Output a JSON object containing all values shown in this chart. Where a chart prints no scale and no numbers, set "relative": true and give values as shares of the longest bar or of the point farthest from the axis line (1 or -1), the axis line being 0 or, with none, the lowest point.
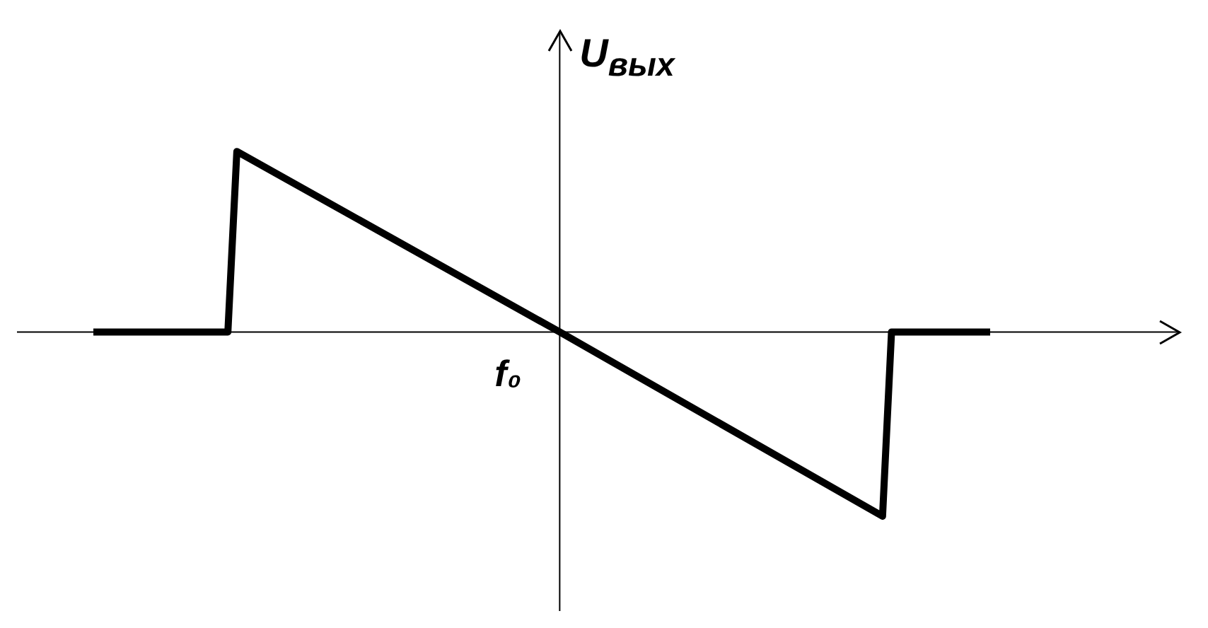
{
  "chart_data": {
    "type": "line",
    "relative": true,
    "ylabel": "U$_{вых}$",
    "categories": [
      null,
      null,
      null,
      null,
      null,
      null,
      null,
      null,
      null,
      null,
      null,
      null,
      null,
      null,
      null,
      null,
      null,
      null,
      null,
      null,
      null,
      null,
      null,
      null,
      null,
      null,
      null,
      null,
      null,
      null,
      null,
      null,
      null,
      null,
      null,
      null,
      null,
      null,
      null,
      null,
      null,
      null,
      null,
      null,
      null,
      null,
      null,
      null,
      null,
      null,
      null,
      null,
      null,
      null,
      null,
      null,
      null,
      null,
      null,
      null,
      null,
      null,
      null,
      null,
      null,
      null,
      null,
      null,
      null,
      null,
      null,
      null,
      null,
      null,
      null,
      null,
      null,
      null,
      null,
      null,
      null,
      null,
      null,
      null,
      null,
      null,
      null,
      null,
      null,
      null,
      null,
      null,
      null,
      null,
      null,
      null,
      null,
      null,
      null,
      null,
      null
    ],
    "values": [
      0,
      null,
      null,
      null,
      null,
      null,
      null,
      null,
      null,
      null,
      null,
      null,
      null,
      null,
      null,
      0,
      0.98,
      null,
      null,
      null,
      null,
      null,
      null,
      null,
      null,
      null,
      null,
      null,
      null,
      null,
      null,
      null,
      null,
      null,
      null,
      null,
      null,
      null,
      null,
      null,
      null,
      null,
      null,
      null,
      null,
      null,
      null,
      null,
      null,
      null,
      null,
      null,
      0,
      null,
      null,
      null,
      null,
      null,
      null,
      null,
      null,
      null,
      null,
      null,
      null,
      null,
      null,
      null,
      null,
      null,
      null,
      null,
      null,
      null,
      null,
      null,
      null,
      null,
      null,
      null,
      null,
      null,
      null,
      null,
      null,
      null,
      null,
      null,
      -1,
      0,
      null,
      null,
      null,
      null,
      null,
      null,
      null,
      null,
      null,
      null,
      0
    ],
    "color": "#000000",
    "annotations": [
      "f₀"
    ],
    "grid": false,
    "legend": false,
    "marker": "none",
    "line_style": "solid"
  }
}
